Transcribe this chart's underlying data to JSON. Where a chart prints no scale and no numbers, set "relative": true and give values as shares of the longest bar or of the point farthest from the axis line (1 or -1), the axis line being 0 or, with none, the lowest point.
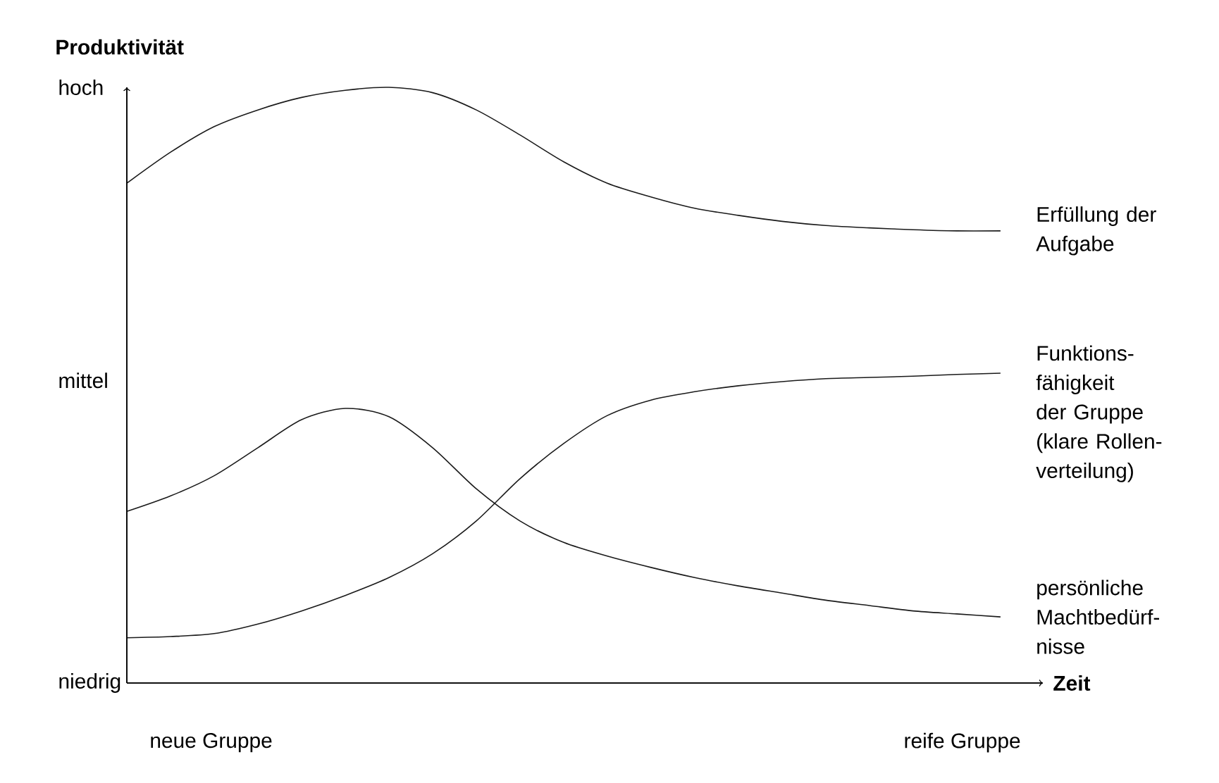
{
  "chart_data": {
    "type": "line",
    "xlabel": "Zeit",
    "ylabel": "Produktivität",
    "relative": true,
    "categories": [
      null,
      null,
      null,
      null,
      null,
      null,
      null,
      null,
      null,
      null,
      null,
      null,
      null,
      null,
      null,
      null,
      null,
      null,
      null,
      null,
      null
    ],
    "annotations": [
      "hoch",
      "mittel",
      "niedrig",
      "neue Gruppe",
      "reife Gruppe"
    ],
    "marker": "none",
    "line_style": "solid",
    "series": [
      {
        "name": "Erfüllung der Aufgabe",
        "color": "#1a1a1a",
        "values": [
          0.839,
          0.891,
          0.934,
          0.962,
          0.983,
          0.995,
          1,
          0.991,
          0.962,
          0.92,
          0.875,
          0.839,
          0.816,
          0.797,
          0.785,
          0.775,
          0.768,
          0.764,
          0.761,
          0.759,
          0.759
        ]
      },
      {
        "name": "Funktions- fähigkeit der Gruppe (klare Rollen- verteilung)",
        "color": "#1a1a1a",
        "values": [
          0.076,
          0.078,
          0.083,
          0.099,
          0.121,
          0.147,
          0.177,
          0.217,
          0.272,
          0.343,
          0.402,
          0.449,
          0.475,
          0.489,
          0.499,
          0.506,
          0.511,
          0.513,
          0.515,
          0.518,
          0.52
        ]
      },
      {
        "name": "persönliche Machtbedürf- nisse",
        "color": "#1a1a1a",
        "values": [
          0.288,
          0.314,
          0.348,
          0.395,
          0.442,
          0.461,
          0.447,
          0.395,
          0.326,
          0.272,
          0.236,
          0.213,
          0.194,
          0.177,
          0.163,
          0.151,
          0.139,
          0.13,
          0.121,
          0.116,
          0.111
        ]
      }
    ]
  }
}
